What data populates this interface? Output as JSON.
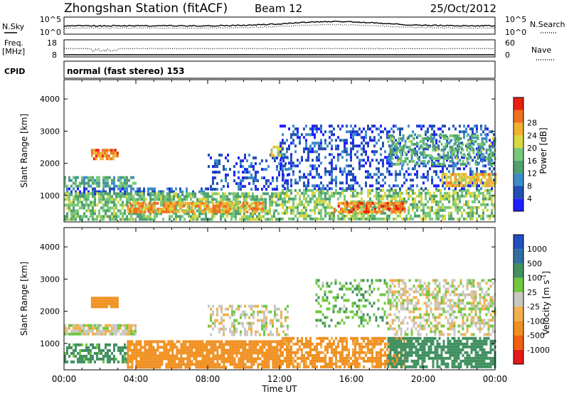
{
  "header": {
    "title": "Zhongshan Station (fitACF)",
    "beam": "Beam 12",
    "date": "25/Oct/2012"
  },
  "top_panels": {
    "nsky_label": "N.Sky",
    "nsky_ticks": [
      "10^5",
      "10^0"
    ],
    "nsearch_label": "N.Search",
    "nsearch_ticks": [
      "10^5",
      "10^0"
    ],
    "freq_label": "Freq.",
    "freq_unit": "[MHz]",
    "freq_ticks": [
      "18",
      "8"
    ],
    "nave_label": "Nave",
    "nave_ticks": [
      "60",
      "0"
    ],
    "cpid_label": "CPID",
    "cpid_text": "normal (fast stereo) 153"
  },
  "colors": {
    "power": [
      "#1e1eff",
      "#2050b0",
      "#3c8cc8",
      "#50a070",
      "#78c878",
      "#d8d840",
      "#f0b030",
      "#f07020",
      "#e82010"
    ],
    "velocity": [
      "#e81818",
      "#f06010",
      "#f09020",
      "#f0b050",
      "#c8c8c0",
      "#70c840",
      "#409060",
      "#3070a0",
      "#2050c0"
    ]
  },
  "chart_data": [
    {
      "type": "heatmap",
      "name": "power",
      "ylabel": "Slant Range [km]",
      "y_ticks": [
        "1000",
        "2000",
        "3000",
        "4000"
      ],
      "y_tick_values": [
        1000,
        2000,
        3000,
        4000
      ],
      "ylim": [
        180,
        4600
      ],
      "x_ticks": [
        "00:00",
        "04:00",
        "08:00",
        "12:00",
        "16:00",
        "20:00",
        "00:00"
      ],
      "xlim_hours": [
        0,
        24
      ],
      "colorbar_label": "Power [dB]",
      "colorbar_ticks": [
        "4",
        "8",
        "12",
        "16",
        "20",
        "24",
        "28"
      ],
      "colorbar_range": [
        0,
        30
      ],
      "regions": [
        {
          "t": [
            0,
            4
          ],
          "r": [
            1300,
            1600
          ],
          "level": 12,
          "density": 0.7
        },
        {
          "t": [
            1.5,
            3
          ],
          "r": [
            2150,
            2450
          ],
          "level": 24,
          "density": 0.8
        },
        {
          "t": [
            0,
            8
          ],
          "r": [
            1000,
            1250
          ],
          "level": 6,
          "density": 0.5
        },
        {
          "t": [
            0,
            12
          ],
          "r": [
            300,
            1100
          ],
          "level": 14,
          "density": 0.7
        },
        {
          "t": [
            3.5,
            11
          ],
          "r": [
            450,
            800
          ],
          "level": 22,
          "density": 0.8
        },
        {
          "t": [
            8,
            12.5
          ],
          "r": [
            1200,
            2300
          ],
          "level": 5,
          "density": 0.3
        },
        {
          "t": [
            11.5,
            12.2
          ],
          "r": [
            2250,
            2550
          ],
          "level": 18,
          "density": 0.8
        },
        {
          "t": [
            12,
            24
          ],
          "r": [
            300,
            1200
          ],
          "level": 15,
          "density": 0.6
        },
        {
          "t": [
            15,
            19
          ],
          "r": [
            500,
            800
          ],
          "level": 24,
          "density": 0.7
        },
        {
          "t": [
            12,
            24
          ],
          "r": [
            1200,
            3200
          ],
          "level": 5,
          "density": 0.35
        },
        {
          "t": [
            18,
            24
          ],
          "r": [
            2000,
            2900
          ],
          "level": 13,
          "density": 0.5
        },
        {
          "t": [
            21,
            24
          ],
          "r": [
            1300,
            1700
          ],
          "level": 20,
          "density": 0.7
        }
      ]
    },
    {
      "type": "heatmap",
      "name": "velocity",
      "ylabel": "Slant Range [km]",
      "y_ticks": [
        "1000",
        "2000",
        "3000",
        "4000"
      ],
      "y_tick_values": [
        1000,
        2000,
        3000,
        4000
      ],
      "ylim": [
        180,
        4600
      ],
      "x_ticks": [
        "00:00",
        "04:00",
        "08:00",
        "12:00",
        "16:00",
        "20:00",
        "00:00"
      ],
      "xlim_hours": [
        0,
        24
      ],
      "xlabel": "Time UT",
      "colorbar_label": "Velocity [m s^-1]",
      "colorbar_ticks": [
        "1000",
        "500",
        "100",
        "25",
        "-25",
        "-100",
        "-500",
        "-1000"
      ],
      "colorbar_range": [
        -1000,
        1000
      ],
      "regions": [
        {
          "t": [
            0,
            4
          ],
          "r": [
            1300,
            1600
          ],
          "level": 0,
          "density": 0.9
        },
        {
          "t": [
            1.5,
            3
          ],
          "r": [
            2150,
            2450
          ],
          "level": -300,
          "density": 0.9
        },
        {
          "t": [
            0,
            3.5
          ],
          "r": [
            400,
            1000
          ],
          "level": 150,
          "density": 0.6
        },
        {
          "t": [
            3.5,
            12
          ],
          "r": [
            300,
            1100
          ],
          "level": -200,
          "density": 0.85
        },
        {
          "t": [
            8,
            12.5
          ],
          "r": [
            1300,
            2200
          ],
          "level": 0,
          "density": 0.45
        },
        {
          "t": [
            12,
            19
          ],
          "r": [
            300,
            1200
          ],
          "level": -150,
          "density": 0.7
        },
        {
          "t": [
            18,
            24
          ],
          "r": [
            300,
            1200
          ],
          "level": 300,
          "density": 0.75
        },
        {
          "t": [
            18,
            24
          ],
          "r": [
            1300,
            3000
          ],
          "level": 0,
          "density": 0.5
        },
        {
          "t": [
            14,
            18
          ],
          "r": [
            1500,
            3000
          ],
          "level": 80,
          "density": 0.25
        }
      ]
    }
  ]
}
